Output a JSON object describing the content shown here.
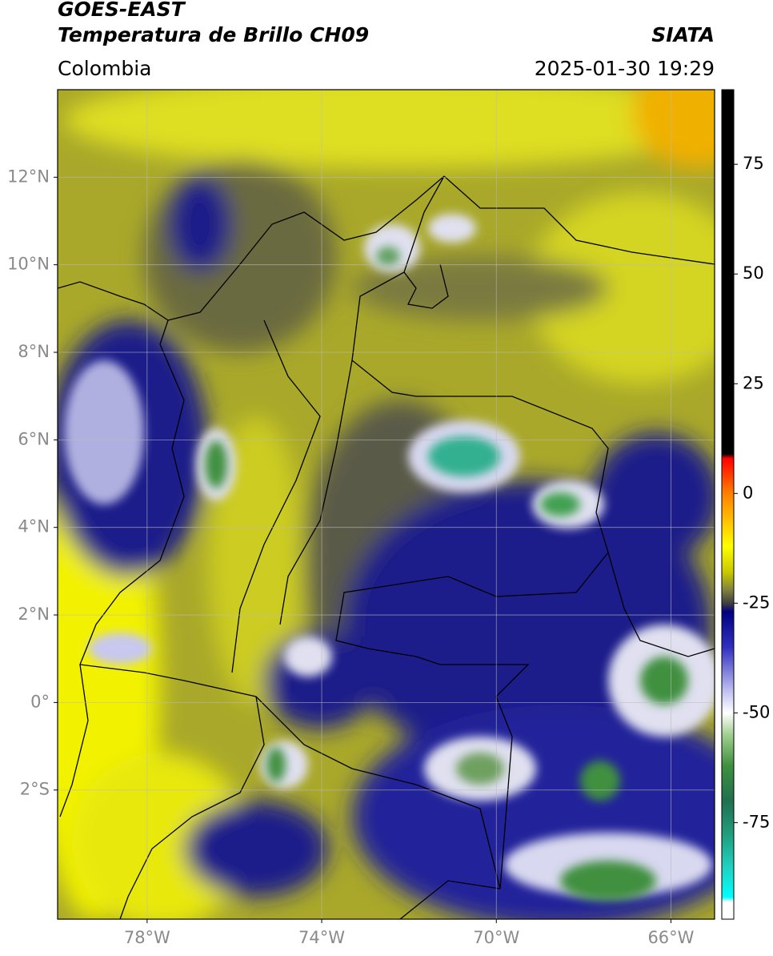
{
  "header": {
    "title_line1": "GOES-EAST",
    "title_line2": "Temperatura de Brillo CH09",
    "source": "SIATA",
    "region": "Colombia",
    "datetime": "2025-01-30 19:29"
  },
  "map": {
    "lonlim": [
      -80.05,
      -65
    ],
    "latlim": [
      -4.95,
      14
    ],
    "lat_ticks": [
      {
        "value": 12,
        "label": "12°N"
      },
      {
        "value": 10,
        "label": "10°N"
      },
      {
        "value": 8,
        "label": "8°N"
      },
      {
        "value": 6,
        "label": "6°N"
      },
      {
        "value": 4,
        "label": "4°N"
      },
      {
        "value": 2,
        "label": "2°N"
      },
      {
        "value": 0,
        "label": "0°"
      },
      {
        "value": -2,
        "label": "2°S"
      }
    ],
    "lon_ticks": [
      {
        "value": -78,
        "label": "78°W"
      },
      {
        "value": -74,
        "label": "74°W"
      },
      {
        "value": -70,
        "label": "70°W"
      },
      {
        "value": -66,
        "label": "66°W"
      }
    ],
    "grid": true
  },
  "colorbar": {
    "lim": [
      -97,
      92
    ],
    "ticks": [
      75,
      50,
      25,
      0,
      -25,
      -50,
      -75
    ],
    "colormap": [
      {
        "value": 92,
        "color": "#000000"
      },
      {
        "value": 9,
        "color": "#000000"
      },
      {
        "value": 8,
        "color": "#ff0000"
      },
      {
        "value": 0,
        "color": "#ff8000"
      },
      {
        "value": -12,
        "color": "#ffff00"
      },
      {
        "value": -18,
        "color": "#c8c800"
      },
      {
        "value": -22,
        "color": "#808040"
      },
      {
        "value": -25,
        "color": "#404040"
      },
      {
        "value": -27,
        "color": "#000080"
      },
      {
        "value": -35,
        "color": "#3030c0"
      },
      {
        "value": -45,
        "color": "#c0c0f0"
      },
      {
        "value": -50,
        "color": "#ffffff"
      },
      {
        "value": -55,
        "color": "#a0d090"
      },
      {
        "value": -62,
        "color": "#409040"
      },
      {
        "value": -70,
        "color": "#207050"
      },
      {
        "value": -78,
        "color": "#20a080"
      },
      {
        "value": -85,
        "color": "#20d0c0"
      },
      {
        "value": -92,
        "color": "#00ffff"
      },
      {
        "value": -93,
        "color": "#ffffff"
      },
      {
        "value": -97,
        "color": "#ffffff"
      }
    ]
  }
}
